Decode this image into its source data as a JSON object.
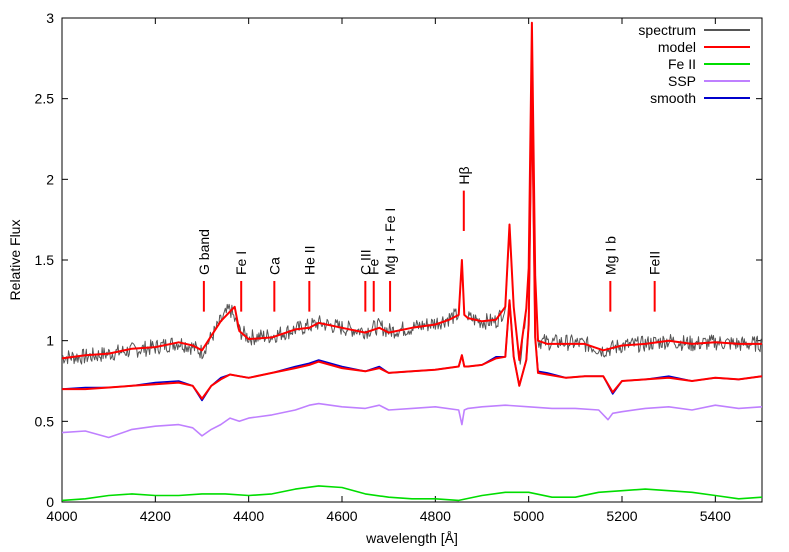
{
  "chart_data": {
    "type": "line",
    "xlabel": "wavelength [Å]",
    "ylabel": "Relative Flux",
    "xlim": [
      4000,
      5500
    ],
    "ylim": [
      0,
      3
    ],
    "xticks": [
      4000,
      4200,
      4400,
      4600,
      4800,
      5000,
      5200,
      5400
    ],
    "xtick_labels": [
      "4000",
      "4200",
      "4400",
      "4600",
      "4800",
      "5000",
      "5200",
      "5400"
    ],
    "yticks": [
      0,
      0.5,
      1,
      1.5,
      2,
      2.5,
      3
    ],
    "ytick_labels": [
      "0",
      "0.5",
      "1",
      "1.5",
      "2",
      "2.5",
      "3"
    ],
    "legend_position": "top-right",
    "legend": [
      {
        "name": "spectrum",
        "color": "#555555"
      },
      {
        "name": "model",
        "color": "#ff0000"
      },
      {
        "name": "Fe II",
        "color": "#00dd00"
      },
      {
        "name": "SSP",
        "color": "#bf80ff"
      },
      {
        "name": "smooth",
        "color": "#0000cc"
      }
    ],
    "series": [
      {
        "name": "spectrum",
        "color": "#555555",
        "x": [
          4000,
          4050,
          4100,
          4150,
          4200,
          4250,
          4280,
          4300,
          4320,
          4340,
          4360,
          4380,
          4400,
          4450,
          4500,
          4530,
          4550,
          4600,
          4650,
          4680,
          4700,
          4750,
          4800,
          4830,
          4850,
          4857,
          4862,
          4870,
          4900,
          4930,
          4950,
          4959,
          4968,
          4980,
          4995,
          5000,
          5007,
          5014,
          5020,
          5040,
          5080,
          5120,
          5160,
          5200,
          5250,
          5300,
          5350,
          5400,
          5450,
          5500
        ],
        "y": [
          0.9,
          0.9,
          0.92,
          0.94,
          0.96,
          0.99,
          0.96,
          0.93,
          1.02,
          1.12,
          1.2,
          1.06,
          1.02,
          1.03,
          1.07,
          1.09,
          1.11,
          1.08,
          1.06,
          1.09,
          1.06,
          1.08,
          1.11,
          1.14,
          1.16,
          1.5,
          1.16,
          1.14,
          1.12,
          1.12,
          1.2,
          1.68,
          1.2,
          0.86,
          1.2,
          1.45,
          2.95,
          1.4,
          1.0,
          0.99,
          0.99,
          0.98,
          0.94,
          0.97,
          0.98,
          1.0,
          0.98,
          0.99,
          0.98,
          0.98
        ]
      },
      {
        "name": "model",
        "color": "#ff0000",
        "x": [
          4000,
          4050,
          4100,
          4150,
          4200,
          4250,
          4280,
          4300,
          4320,
          4340,
          4360,
          4370,
          4380,
          4400,
          4450,
          4500,
          4530,
          4550,
          4600,
          4650,
          4680,
          4700,
          4750,
          4800,
          4830,
          4850,
          4857,
          4862,
          4870,
          4900,
          4930,
          4950,
          4959,
          4968,
          4980,
          4995,
          5000,
          5007,
          5014,
          5020,
          5040,
          5080,
          5120,
          5160,
          5200,
          5250,
          5300,
          5350,
          5400,
          5450,
          5500
        ],
        "y": [
          0.89,
          0.91,
          0.92,
          0.95,
          0.96,
          0.99,
          0.97,
          0.94,
          1.03,
          1.12,
          1.18,
          1.21,
          1.06,
          1.01,
          1.02,
          1.07,
          1.08,
          1.11,
          1.08,
          1.05,
          1.08,
          1.05,
          1.08,
          1.1,
          1.13,
          1.16,
          1.5,
          1.16,
          1.14,
          1.12,
          1.13,
          1.21,
          1.72,
          1.21,
          0.88,
          1.2,
          1.45,
          2.97,
          1.4,
          1.0,
          0.98,
          0.98,
          0.98,
          0.94,
          0.97,
          0.98,
          1.0,
          0.98,
          0.99,
          0.98,
          0.98
        ]
      },
      {
        "name": "smooth",
        "color": "#0000cc",
        "x": [
          4000,
          4050,
          4100,
          4150,
          4200,
          4250,
          4280,
          4300,
          4320,
          4340,
          4360,
          4380,
          4400,
          4450,
          4500,
          4530,
          4550,
          4600,
          4650,
          4680,
          4700,
          4750,
          4800,
          4850,
          4857,
          4862,
          4870,
          4900,
          4930,
          4950,
          4959,
          4968,
          4980,
          4995,
          5000,
          5007,
          5014,
          5020,
          5040,
          5080,
          5120,
          5160,
          5180,
          5200,
          5250,
          5300,
          5350,
          5400,
          5450,
          5500
        ],
        "y": [
          0.7,
          0.71,
          0.71,
          0.72,
          0.74,
          0.75,
          0.72,
          0.63,
          0.72,
          0.77,
          0.79,
          0.78,
          0.77,
          0.8,
          0.84,
          0.86,
          0.88,
          0.84,
          0.81,
          0.84,
          0.8,
          0.81,
          0.82,
          0.84,
          0.91,
          0.84,
          0.84,
          0.85,
          0.9,
          0.9,
          1.25,
          0.9,
          0.72,
          0.88,
          1.1,
          2.6,
          1.02,
          0.81,
          0.8,
          0.77,
          0.78,
          0.78,
          0.67,
          0.75,
          0.76,
          0.78,
          0.75,
          0.77,
          0.76,
          0.78
        ]
      },
      {
        "name": "model",
        "color": "#ff0000",
        "x": [
          4000,
          4050,
          4100,
          4150,
          4200,
          4250,
          4280,
          4300,
          4320,
          4340,
          4360,
          4380,
          4400,
          4450,
          4500,
          4530,
          4550,
          4600,
          4650,
          4680,
          4700,
          4750,
          4800,
          4850,
          4857,
          4862,
          4870,
          4900,
          4930,
          4950,
          4959,
          4968,
          4980,
          4995,
          5000,
          5007,
          5014,
          5020,
          5040,
          5080,
          5120,
          5160,
          5180,
          5200,
          5250,
          5300,
          5350,
          5400,
          5450,
          5500
        ],
        "y": [
          0.7,
          0.7,
          0.71,
          0.72,
          0.73,
          0.74,
          0.72,
          0.64,
          0.72,
          0.76,
          0.79,
          0.78,
          0.77,
          0.8,
          0.83,
          0.85,
          0.87,
          0.83,
          0.81,
          0.83,
          0.8,
          0.81,
          0.82,
          0.84,
          0.91,
          0.84,
          0.84,
          0.85,
          0.89,
          0.9,
          1.25,
          0.9,
          0.72,
          0.88,
          1.1,
          2.6,
          1.02,
          0.8,
          0.79,
          0.77,
          0.78,
          0.78,
          0.68,
          0.75,
          0.76,
          0.77,
          0.75,
          0.77,
          0.76,
          0.78
        ]
      },
      {
        "name": "SSP",
        "color": "#bf80ff",
        "x": [
          4000,
          4050,
          4100,
          4150,
          4200,
          4250,
          4280,
          4300,
          4320,
          4340,
          4360,
          4380,
          4400,
          4450,
          4500,
          4530,
          4550,
          4600,
          4650,
          4680,
          4700,
          4750,
          4800,
          4850,
          4857,
          4862,
          4870,
          4900,
          4950,
          5000,
          5050,
          5100,
          5150,
          5170,
          5180,
          5200,
          5250,
          5300,
          5350,
          5400,
          5450,
          5500
        ],
        "y": [
          0.43,
          0.44,
          0.4,
          0.45,
          0.47,
          0.48,
          0.46,
          0.41,
          0.45,
          0.48,
          0.52,
          0.5,
          0.52,
          0.54,
          0.57,
          0.6,
          0.61,
          0.59,
          0.58,
          0.6,
          0.57,
          0.58,
          0.59,
          0.57,
          0.48,
          0.57,
          0.58,
          0.59,
          0.6,
          0.59,
          0.58,
          0.58,
          0.57,
          0.51,
          0.55,
          0.56,
          0.58,
          0.59,
          0.57,
          0.6,
          0.58,
          0.59
        ]
      },
      {
        "name": "Fe II",
        "color": "#00dd00",
        "x": [
          4000,
          4050,
          4100,
          4150,
          4200,
          4250,
          4300,
          4350,
          4400,
          4450,
          4500,
          4550,
          4600,
          4650,
          4700,
          4750,
          4800,
          4850,
          4900,
          4950,
          5000,
          5050,
          5100,
          5150,
          5200,
          5250,
          5300,
          5350,
          5400,
          5450,
          5500
        ],
        "y": [
          0.01,
          0.02,
          0.04,
          0.05,
          0.04,
          0.04,
          0.05,
          0.05,
          0.04,
          0.05,
          0.08,
          0.1,
          0.09,
          0.05,
          0.03,
          0.02,
          0.02,
          0.01,
          0.04,
          0.06,
          0.06,
          0.03,
          0.03,
          0.06,
          0.07,
          0.08,
          0.07,
          0.06,
          0.04,
          0.02,
          0.03
        ]
      }
    ],
    "annotations": [
      {
        "label": "G band",
        "x": 4304
      },
      {
        "label": "Fe I",
        "x": 4384
      },
      {
        "label": "Ca",
        "x": 4455
      },
      {
        "label": "He II",
        "x": 4530
      },
      {
        "label": "C III",
        "x": 4650
      },
      {
        "label": "Fe",
        "x": 4668
      },
      {
        "label": "Mg I + Fe I",
        "x": 4703
      },
      {
        "label": "Hβ",
        "x": 4861
      },
      {
        "label": "Mg I b",
        "x": 5175
      },
      {
        "label": "FeII",
        "x": 5270
      }
    ]
  }
}
